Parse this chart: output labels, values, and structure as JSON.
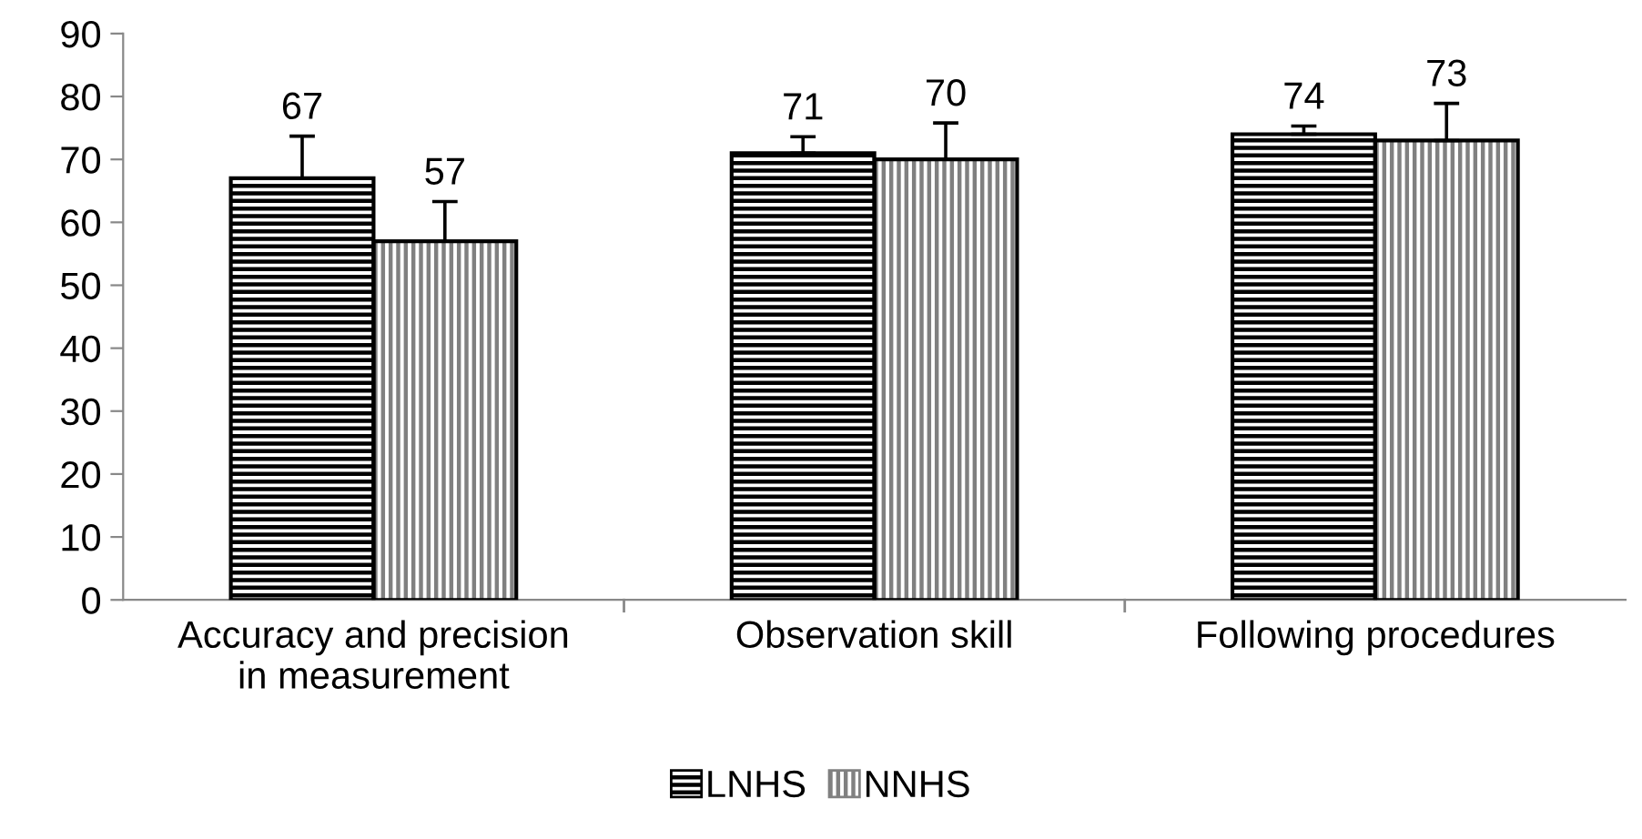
{
  "chart_data": {
    "type": "bar",
    "categories": [
      "Accuracy and precision\nin measurement",
      "Observation skill",
      "Following procedures"
    ],
    "series": [
      {
        "name": "LNHS",
        "color": "#ffffff",
        "values": [
          67,
          71,
          74
        ],
        "errors": [
          [
            67,
            73.7
          ],
          [
            71,
            73.6
          ],
          [
            74,
            75.3
          ]
        ]
      },
      {
        "name": "NNHS",
        "color": "#ffffff",
        "values": [
          57,
          70,
          73
        ],
        "errors": [
          [
            57,
            63.3
          ],
          [
            70,
            75.8
          ],
          [
            73,
            78.9
          ]
        ]
      }
    ],
    "ylim": [
      0,
      90
    ],
    "yticks": [
      0,
      10,
      20,
      30,
      40,
      50,
      60,
      70,
      80,
      90
    ],
    "data_labels": true,
    "grid": false,
    "legend": "bottom"
  }
}
